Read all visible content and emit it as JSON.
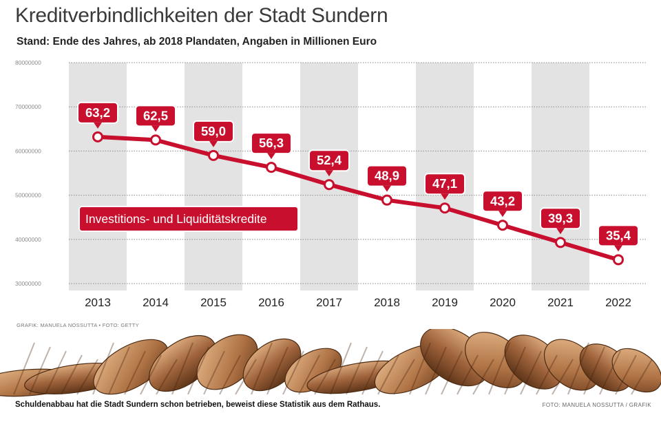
{
  "header": {
    "title": "Kreditverbindlichkeiten der Stadt Sundern",
    "subtitle": "Stand: Ende des Jahres, ab 2018 Plandaten, Angaben in Millionen Euro"
  },
  "credits": {
    "top": "GRAFIK: MANUELA NOSSUTTA • FOTO: GETTY",
    "bottom": "FOTO: MANUELA NOSSUTTA / GRAFIK"
  },
  "caption": "Schuldenabbau hat die Stadt Sundern schon betrieben, beweist diese Statistik aus dem Rathaus.",
  "colors": {
    "accent": "#c8102e",
    "band": "#e3e3e3",
    "grid": "#8a8a8a"
  },
  "chart_data": {
    "type": "line",
    "categories": [
      "2013",
      "2014",
      "2015",
      "2016",
      "2017",
      "2018",
      "2019",
      "2020",
      "2021",
      "2022"
    ],
    "series": [
      {
        "name": "Investitions- und Liquiditätskredite",
        "values": [
          63.2,
          62.5,
          59.0,
          56.3,
          52.4,
          48.9,
          47.1,
          43.2,
          39.3,
          35.4
        ],
        "labels": [
          "63,2",
          "62,5",
          "59,0",
          "56,3",
          "52,4",
          "48,9",
          "47,1",
          "43,2",
          "39,3",
          "35,4"
        ]
      }
    ],
    "yticks": [
      "30000000",
      "40000000",
      "50000000",
      "60000000",
      "70000000",
      "80000000"
    ],
    "ylim": [
      30000000,
      80000000
    ],
    "grid": true,
    "legend": "inside-left"
  }
}
